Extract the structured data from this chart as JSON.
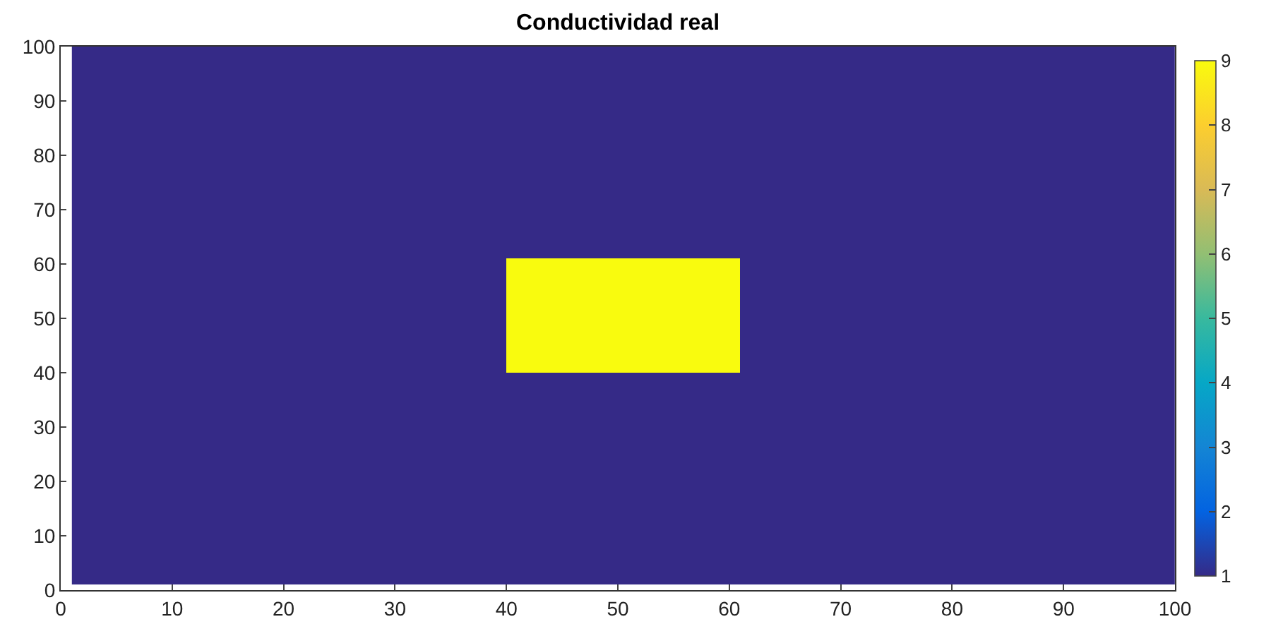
{
  "chart_data": {
    "type": "heatmap",
    "title": "Conductividad real",
    "x": [
      2.5,
      5.5,
      8.5,
      11.5,
      14.5,
      17.5,
      20.5,
      23.5,
      26.5,
      29.5,
      32.5,
      35.5,
      38.5,
      41.5,
      44.5,
      47.5,
      50.5,
      53.5,
      56.5,
      59.5,
      62.5,
      65.5,
      68.5,
      71.5,
      74.5,
      77.5,
      80.5,
      83.5,
      86.5,
      89.5,
      92.5,
      95.5,
      98.5
    ],
    "y": [
      98.5,
      95.5,
      92.5,
      89.5,
      86.5,
      83.5,
      80.5,
      77.5,
      74.5,
      71.5,
      68.5,
      65.5,
      62.5,
      59.5,
      56.5,
      53.5,
      50.5,
      47.5,
      44.5,
      41.5,
      38.5,
      35.5,
      32.5,
      29.5,
      26.5,
      23.5,
      20.5,
      17.5,
      14.5,
      11.5,
      8.5,
      5.5,
      2.5
    ],
    "cells": [
      [
        1,
        1,
        1,
        1,
        1,
        1,
        1,
        1,
        1,
        1,
        1,
        1,
        1,
        1,
        1,
        1,
        1,
        1,
        1,
        1,
        1,
        1,
        1,
        1,
        1,
        1,
        1,
        1,
        1,
        1,
        1,
        1,
        1
      ],
      [
        1,
        1,
        1,
        1,
        1,
        1,
        1,
        1,
        1,
        1,
        1,
        1,
        1,
        1,
        1,
        1,
        1,
        1,
        1,
        1,
        1,
        1,
        1,
        1,
        1,
        1,
        1,
        1,
        1,
        1,
        1,
        1,
        1
      ],
      [
        1,
        1,
        1,
        1,
        1,
        1,
        1,
        1,
        1,
        1,
        1,
        1,
        1,
        1,
        1,
        1,
        1,
        1,
        1,
        1,
        1,
        1,
        1,
        1,
        1,
        1,
        1,
        1,
        1,
        1,
        1,
        1,
        1
      ],
      [
        1,
        1,
        1,
        1,
        1,
        1,
        1,
        1,
        1,
        1,
        1,
        1,
        1,
        1,
        1,
        1,
        1,
        1,
        1,
        1,
        1,
        1,
        1,
        1,
        1,
        1,
        1,
        1,
        1,
        1,
        1,
        1,
        1
      ],
      [
        1,
        1,
        1,
        1,
        1,
        1,
        1,
        1,
        1,
        1,
        1,
        1,
        1,
        1,
        1,
        1,
        1,
        1,
        1,
        1,
        1,
        1,
        1,
        1,
        1,
        1,
        1,
        1,
        1,
        1,
        1,
        1,
        1
      ],
      [
        1,
        1,
        1,
        1,
        1,
        1,
        1,
        1,
        1,
        1,
        1,
        1,
        1,
        1,
        1,
        1,
        1,
        1,
        1,
        1,
        1,
        1,
        1,
        1,
        1,
        1,
        1,
        1,
        1,
        1,
        1,
        1,
        1
      ],
      [
        1,
        1,
        1,
        1,
        1,
        1,
        1,
        1,
        1,
        1,
        1,
        1,
        1,
        1,
        1,
        1,
        1,
        1,
        1,
        1,
        1,
        1,
        1,
        1,
        1,
        1,
        1,
        1,
        1,
        1,
        1,
        1,
        1
      ],
      [
        1,
        1,
        1,
        1,
        1,
        1,
        1,
        1,
        1,
        1,
        1,
        1,
        1,
        1,
        1,
        1,
        1,
        1,
        1,
        1,
        1,
        1,
        1,
        1,
        1,
        1,
        1,
        1,
        1,
        1,
        1,
        1,
        1
      ],
      [
        1,
        1,
        1,
        1,
        1,
        1,
        1,
        1,
        1,
        1,
        1,
        1,
        1,
        1,
        1,
        1,
        1,
        1,
        1,
        1,
        1,
        1,
        1,
        1,
        1,
        1,
        1,
        1,
        1,
        1,
        1,
        1,
        1
      ],
      [
        1,
        1,
        1,
        1,
        1,
        1,
        1,
        1,
        1,
        1,
        1,
        1,
        1,
        1,
        1,
        1,
        1,
        1,
        1,
        1,
        1,
        1,
        1,
        1,
        1,
        1,
        1,
        1,
        1,
        1,
        1,
        1,
        1
      ],
      [
        1,
        1,
        1,
        1,
        1,
        1,
        1,
        1,
        1,
        1,
        1,
        1,
        1,
        1,
        1,
        1,
        1,
        1,
        1,
        1,
        1,
        1,
        1,
        1,
        1,
        1,
        1,
        1,
        1,
        1,
        1,
        1,
        1
      ],
      [
        1,
        1,
        1,
        1,
        1,
        1,
        1,
        1,
        1,
        1,
        1,
        1,
        1,
        1,
        1,
        1,
        1,
        1,
        1,
        1,
        1,
        1,
        1,
        1,
        1,
        1,
        1,
        1,
        1,
        1,
        1,
        1,
        1
      ],
      [
        1,
        1,
        1,
        1,
        1,
        1,
        1,
        1,
        1,
        1,
        1,
        1,
        1,
        1,
        1,
        1,
        1,
        1,
        1,
        1,
        1,
        1,
        1,
        1,
        1,
        1,
        1,
        1,
        1,
        1,
        1,
        1,
        1
      ],
      [
        1,
        1,
        1,
        1,
        1,
        1,
        1,
        1,
        1,
        1,
        1,
        1,
        1,
        9,
        9,
        9,
        9,
        9,
        9,
        9,
        1,
        1,
        1,
        1,
        1,
        1,
        1,
        1,
        1,
        1,
        1,
        1,
        1
      ],
      [
        1,
        1,
        1,
        1,
        1,
        1,
        1,
        1,
        1,
        1,
        1,
        1,
        1,
        9,
        9,
        9,
        9,
        9,
        9,
        9,
        1,
        1,
        1,
        1,
        1,
        1,
        1,
        1,
        1,
        1,
        1,
        1,
        1
      ],
      [
        1,
        1,
        1,
        1,
        1,
        1,
        1,
        1,
        1,
        1,
        1,
        1,
        1,
        9,
        9,
        9,
        9,
        9,
        9,
        9,
        1,
        1,
        1,
        1,
        1,
        1,
        1,
        1,
        1,
        1,
        1,
        1,
        1
      ],
      [
        1,
        1,
        1,
        1,
        1,
        1,
        1,
        1,
        1,
        1,
        1,
        1,
        1,
        9,
        9,
        9,
        9,
        9,
        9,
        9,
        1,
        1,
        1,
        1,
        1,
        1,
        1,
        1,
        1,
        1,
        1,
        1,
        1
      ],
      [
        1,
        1,
        1,
        1,
        1,
        1,
        1,
        1,
        1,
        1,
        1,
        1,
        1,
        9,
        9,
        9,
        9,
        9,
        9,
        9,
        1,
        1,
        1,
        1,
        1,
        1,
        1,
        1,
        1,
        1,
        1,
        1,
        1
      ],
      [
        1,
        1,
        1,
        1,
        1,
        1,
        1,
        1,
        1,
        1,
        1,
        1,
        1,
        9,
        9,
        9,
        9,
        9,
        9,
        9,
        1,
        1,
        1,
        1,
        1,
        1,
        1,
        1,
        1,
        1,
        1,
        1,
        1
      ],
      [
        1,
        1,
        1,
        1,
        1,
        1,
        1,
        1,
        1,
        1,
        1,
        1,
        1,
        9,
        9,
        9,
        9,
        9,
        9,
        9,
        1,
        1,
        1,
        1,
        1,
        1,
        1,
        1,
        1,
        1,
        1,
        1,
        1
      ],
      [
        1,
        1,
        1,
        1,
        1,
        1,
        1,
        1,
        1,
        1,
        1,
        1,
        1,
        1,
        1,
        1,
        1,
        1,
        1,
        1,
        1,
        1,
        1,
        1,
        1,
        1,
        1,
        1,
        1,
        1,
        1,
        1,
        1
      ],
      [
        1,
        1,
        1,
        1,
        1,
        1,
        1,
        1,
        1,
        1,
        1,
        1,
        1,
        1,
        1,
        1,
        1,
        1,
        1,
        1,
        1,
        1,
        1,
        1,
        1,
        1,
        1,
        1,
        1,
        1,
        1,
        1,
        1
      ],
      [
        1,
        1,
        1,
        1,
        1,
        1,
        1,
        1,
        1,
        1,
        1,
        1,
        1,
        1,
        1,
        1,
        1,
        1,
        1,
        1,
        1,
        1,
        1,
        1,
        1,
        1,
        1,
        1,
        1,
        1,
        1,
        1,
        1
      ],
      [
        1,
        1,
        1,
        1,
        1,
        1,
        1,
        1,
        1,
        1,
        1,
        1,
        1,
        1,
        1,
        1,
        1,
        1,
        1,
        1,
        1,
        1,
        1,
        1,
        1,
        1,
        1,
        1,
        1,
        1,
        1,
        1,
        1
      ],
      [
        1,
        1,
        1,
        1,
        1,
        1,
        1,
        1,
        1,
        1,
        1,
        1,
        1,
        1,
        1,
        1,
        1,
        1,
        1,
        1,
        1,
        1,
        1,
        1,
        1,
        1,
        1,
        1,
        1,
        1,
        1,
        1,
        1
      ],
      [
        1,
        1,
        1,
        1,
        1,
        1,
        1,
        1,
        1,
        1,
        1,
        1,
        1,
        1,
        1,
        1,
        1,
        1,
        1,
        1,
        1,
        1,
        1,
        1,
        1,
        1,
        1,
        1,
        1,
        1,
        1,
        1,
        1
      ],
      [
        1,
        1,
        1,
        1,
        1,
        1,
        1,
        1,
        1,
        1,
        1,
        1,
        1,
        1,
        1,
        1,
        1,
        1,
        1,
        1,
        1,
        1,
        1,
        1,
        1,
        1,
        1,
        1,
        1,
        1,
        1,
        1,
        1
      ],
      [
        1,
        1,
        1,
        1,
        1,
        1,
        1,
        1,
        1,
        1,
        1,
        1,
        1,
        1,
        1,
        1,
        1,
        1,
        1,
        1,
        1,
        1,
        1,
        1,
        1,
        1,
        1,
        1,
        1,
        1,
        1,
        1,
        1
      ],
      [
        1,
        1,
        1,
        1,
        1,
        1,
        1,
        1,
        1,
        1,
        1,
        1,
        1,
        1,
        1,
        1,
        1,
        1,
        1,
        1,
        1,
        1,
        1,
        1,
        1,
        1,
        1,
        1,
        1,
        1,
        1,
        1,
        1
      ],
      [
        1,
        1,
        1,
        1,
        1,
        1,
        1,
        1,
        1,
        1,
        1,
        1,
        1,
        1,
        1,
        1,
        1,
        1,
        1,
        1,
        1,
        1,
        1,
        1,
        1,
        1,
        1,
        1,
        1,
        1,
        1,
        1,
        1
      ],
      [
        1,
        1,
        1,
        1,
        1,
        1,
        1,
        1,
        1,
        1,
        1,
        1,
        1,
        1,
        1,
        1,
        1,
        1,
        1,
        1,
        1,
        1,
        1,
        1,
        1,
        1,
        1,
        1,
        1,
        1,
        1,
        1,
        1
      ],
      [
        1,
        1,
        1,
        1,
        1,
        1,
        1,
        1,
        1,
        1,
        1,
        1,
        1,
        1,
        1,
        1,
        1,
        1,
        1,
        1,
        1,
        1,
        1,
        1,
        1,
        1,
        1,
        1,
        1,
        1,
        1,
        1,
        1
      ],
      [
        1,
        1,
        1,
        1,
        1,
        1,
        1,
        1,
        1,
        1,
        1,
        1,
        1,
        1,
        1,
        1,
        1,
        1,
        1,
        1,
        1,
        1,
        1,
        1,
        1,
        1,
        1,
        1,
        1,
        1,
        1,
        1,
        1
      ]
    ],
    "clim": [
      1,
      9
    ],
    "cticks": [
      1,
      2,
      3,
      4,
      5,
      6,
      7,
      8,
      9
    ],
    "xlim": [
      0,
      100
    ],
    "xticks": [
      0,
      10,
      20,
      30,
      40,
      50,
      60,
      70,
      80,
      90,
      100
    ],
    "ylim": [
      0,
      100
    ],
    "yticks": [
      0,
      10,
      20,
      30,
      40,
      50,
      60,
      70,
      80,
      90,
      100
    ],
    "grid": false
  }
}
